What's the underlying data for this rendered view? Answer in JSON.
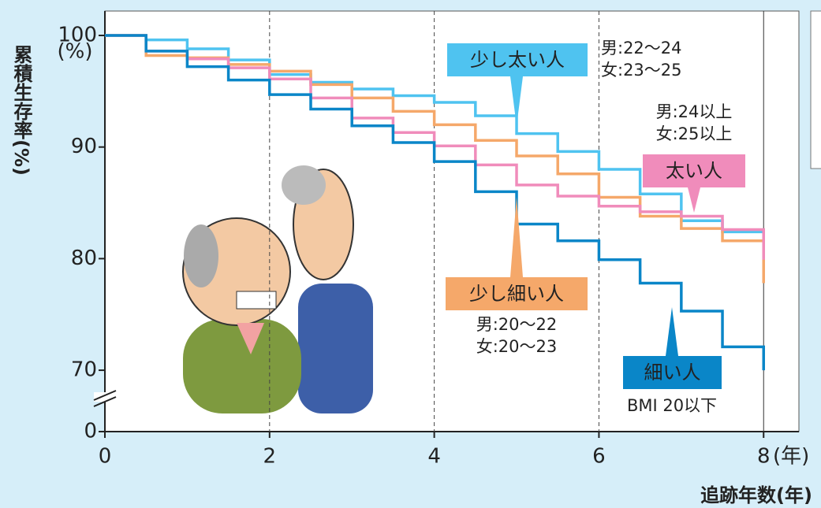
{
  "chart_data": {
    "type": "line",
    "step": true,
    "y_label": "累積生存率(%)",
    "y_unit": "(%)",
    "x_label": "追跡年数(年)",
    "x_unit": "(年)",
    "xlim": [
      0,
      8.4
    ],
    "xticks": [
      0,
      2,
      4,
      6,
      8
    ],
    "ylim": [
      64.5,
      100
    ],
    "yticks": [
      0,
      70,
      80,
      90,
      100
    ],
    "axis_break": true,
    "grid": true,
    "series": [
      {
        "name": "少し太い人",
        "color": "#4fc3f0",
        "notes": [
          "男:22〜24",
          "女:23〜25"
        ],
        "x": [
          0,
          0.5,
          1,
          1.5,
          2,
          2.5,
          3,
          3.5,
          4,
          4.5,
          5,
          5.5,
          6,
          6.5,
          7,
          7.5,
          8
        ],
        "values": [
          100,
          99.6,
          98.8,
          97.8,
          96.5,
          95.8,
          95.2,
          94.6,
          94,
          92.8,
          91.2,
          89.6,
          88,
          85.8,
          83.4,
          82.4,
          81.2
        ]
      },
      {
        "name": "少し細い人",
        "color": "#f5a86a",
        "notes": [
          "男:20〜22",
          "女:20〜23"
        ],
        "x": [
          0,
          0.5,
          1,
          1.5,
          2,
          2.5,
          3,
          3.5,
          4,
          4.5,
          5,
          5.5,
          6,
          6.5,
          7,
          7.5,
          8
        ],
        "values": [
          100,
          98.2,
          98,
          97.4,
          96.8,
          95.6,
          94.4,
          93.2,
          92,
          90.6,
          89.2,
          87.6,
          85.5,
          83.8,
          82.7,
          81.6,
          77.8
        ]
      },
      {
        "name": "太い人",
        "color": "#f08cbb",
        "notes": [
          "男:24以上",
          "女:25以上"
        ],
        "x": [
          0,
          0.5,
          1,
          1.5,
          2,
          2.5,
          3,
          3.5,
          4,
          4.5,
          5,
          5.5,
          6,
          6.5,
          7,
          7.5,
          8
        ],
        "values": [
          100,
          98.6,
          97.9,
          97.1,
          96.1,
          94.4,
          92.6,
          91.3,
          90.1,
          88.4,
          86.6,
          85.6,
          84.7,
          84.2,
          83.8,
          82.6,
          79.9
        ]
      },
      {
        "name": "細い人",
        "color": "#0a86c8",
        "notes": [
          "BMI 20以下"
        ],
        "x": [
          0,
          0.5,
          1,
          1.5,
          2,
          2.5,
          3,
          3.5,
          4,
          4.5,
          5,
          5.5,
          6,
          6.5,
          7,
          7.5,
          8
        ],
        "values": [
          100,
          98.6,
          97.2,
          96,
          94.7,
          93.4,
          91.9,
          90.4,
          88.7,
          86,
          83.1,
          81.6,
          79.9,
          77.8,
          75.3,
          72.1,
          70
        ]
      }
    ]
  }
}
